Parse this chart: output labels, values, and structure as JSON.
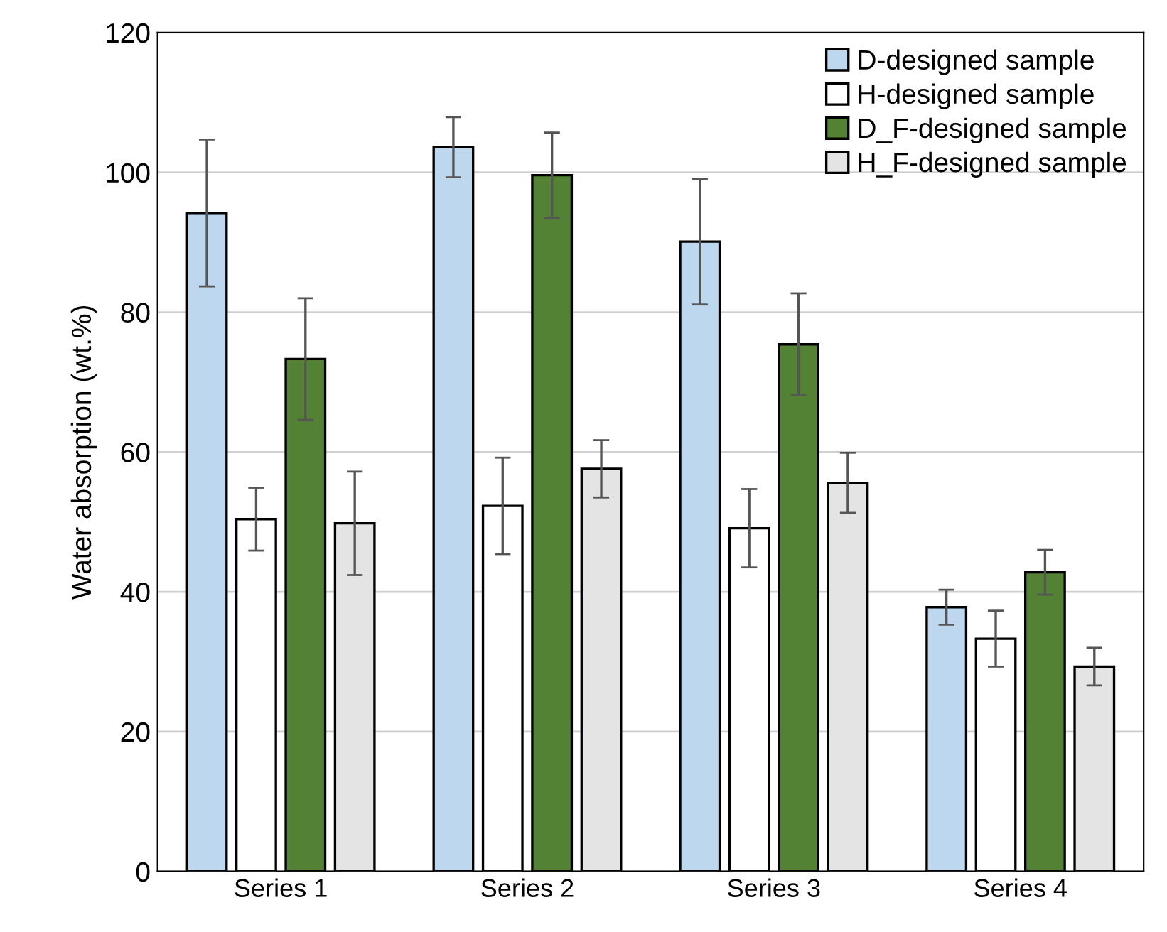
{
  "chart_data": {
    "type": "bar",
    "ylabel": "Water absorption (wt.%)",
    "categories": [
      "Series 1",
      "Series 2",
      "Series 3",
      "Series 4"
    ],
    "series": [
      {
        "name": "D-designed sample",
        "color": "#bdd7ee",
        "values": [
          94.2,
          103.6,
          90.1,
          37.8
        ],
        "errors": [
          10.5,
          4.3,
          9.0,
          2.5
        ]
      },
      {
        "name": "H-designed sample",
        "color": "#ffffff",
        "values": [
          50.4,
          52.3,
          49.1,
          33.3
        ],
        "errors": [
          4.5,
          6.9,
          5.6,
          4.0
        ]
      },
      {
        "name": "D_F-designed sample",
        "color": "#548235",
        "values": [
          73.3,
          99.6,
          75.4,
          42.8
        ],
        "errors": [
          8.7,
          6.1,
          7.3,
          3.2
        ]
      },
      {
        "name": "H_F-designed sample",
        "color": "#e4e4e4",
        "values": [
          49.8,
          57.6,
          55.6,
          29.3
        ],
        "errors": [
          7.4,
          4.1,
          4.3,
          2.7
        ]
      }
    ],
    "ylim": [
      0,
      120
    ],
    "yticks": [
      0,
      20,
      40,
      60,
      80,
      100,
      120
    ],
    "grid": "y",
    "legend": "top right"
  }
}
